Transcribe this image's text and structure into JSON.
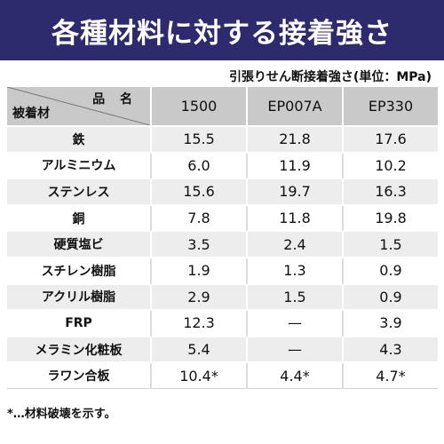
{
  "title": "各種材料に対する接着強さ",
  "unit_note": "引張りせん断接着強さ(単位：MPa)",
  "header": {
    "product_label": "品 名",
    "material_label": "被着材",
    "products": [
      "1500",
      "EP007A",
      "EP330"
    ]
  },
  "rows": [
    {
      "material": "鉄",
      "values": [
        "15.5",
        "21.8",
        "17.6"
      ]
    },
    {
      "material": "アルミニウム",
      "values": [
        "6.0",
        "11.9",
        "10.2"
      ]
    },
    {
      "material": "ステンレス",
      "values": [
        "15.6",
        "19.7",
        "16.3"
      ]
    },
    {
      "material": "銅",
      "values": [
        "7.8",
        "11.8",
        "19.8"
      ]
    },
    {
      "material": "硬質塩ビ",
      "values": [
        "3.5",
        "2.4",
        "1.5"
      ]
    },
    {
      "material": "スチレン樹脂",
      "values": [
        "1.9",
        "1.3",
        "0.9"
      ]
    },
    {
      "material": "アクリル樹脂",
      "values": [
        "2.9",
        "1.5",
        "0.9"
      ]
    },
    {
      "material": "FRP",
      "values": [
        "12.3",
        "—",
        "3.9"
      ]
    },
    {
      "material": "メラミン化粧板",
      "values": [
        "5.4",
        "—",
        "4.3"
      ]
    },
    {
      "material": "ラワン合板",
      "values": [
        "10.4*",
        "4.4*",
        "4.7*"
      ]
    }
  ],
  "footnote": "*…材料破壊を示す。"
}
